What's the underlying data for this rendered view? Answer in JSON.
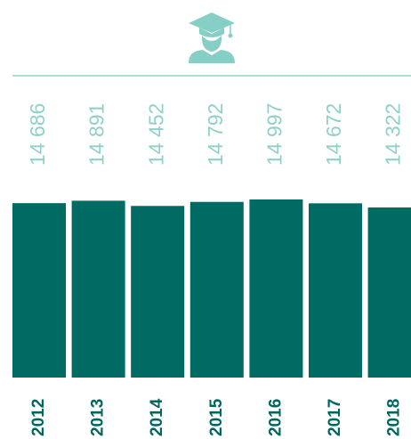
{
  "chart_data": {
    "type": "bar",
    "categories": [
      "2012",
      "2013",
      "2014",
      "2015",
      "2016",
      "2017",
      "2018"
    ],
    "values": [
      14686,
      14891,
      14452,
      14792,
      14997,
      14672,
      14322
    ],
    "value_labels": [
      "14 686",
      "14 891",
      "14 452",
      "14 792",
      "14 997",
      "14 672",
      "14 322"
    ],
    "color": "#006b62"
  }
}
